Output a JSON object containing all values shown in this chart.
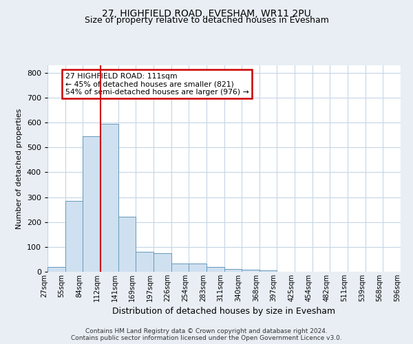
{
  "title1": "27, HIGHFIELD ROAD, EVESHAM, WR11 2PU",
  "title2": "Size of property relative to detached houses in Evesham",
  "xlabel": "Distribution of detached houses by size in Evesham",
  "ylabel": "Number of detached properties",
  "footer1": "Contains HM Land Registry data © Crown copyright and database right 2024.",
  "footer2": "Contains public sector information licensed under the Open Government Licence v3.0.",
  "bin_labels": [
    "27sqm",
    "55sqm",
    "84sqm",
    "112sqm",
    "141sqm",
    "169sqm",
    "197sqm",
    "226sqm",
    "254sqm",
    "283sqm",
    "311sqm",
    "340sqm",
    "368sqm",
    "397sqm",
    "425sqm",
    "454sqm",
    "482sqm",
    "511sqm",
    "539sqm",
    "568sqm",
    "596sqm"
  ],
  "bar_values": [
    20,
    285,
    545,
    595,
    220,
    80,
    75,
    33,
    33,
    20,
    10,
    8,
    5,
    0,
    0,
    0,
    0,
    0,
    0,
    0
  ],
  "bar_color": "#cfe0f0",
  "bar_edge_color": "#6699bb",
  "property_line_bin": 3,
  "annotation_text": "27 HIGHFIELD ROAD: 111sqm\n← 45% of detached houses are smaller (821)\n54% of semi-detached houses are larger (976) →",
  "annotation_box_color": "white",
  "annotation_box_edge_color": "#cc0000",
  "line_color": "#cc0000",
  "ylim": [
    0,
    830
  ],
  "yticks": [
    0,
    100,
    200,
    300,
    400,
    500,
    600,
    700,
    800
  ],
  "background_color": "#e8eef4",
  "plot_background": "white",
  "grid_color": "#c5d5e5",
  "title1_fontsize": 10,
  "title2_fontsize": 9,
  "ylabel_fontsize": 8,
  "xlabel_fontsize": 9
}
